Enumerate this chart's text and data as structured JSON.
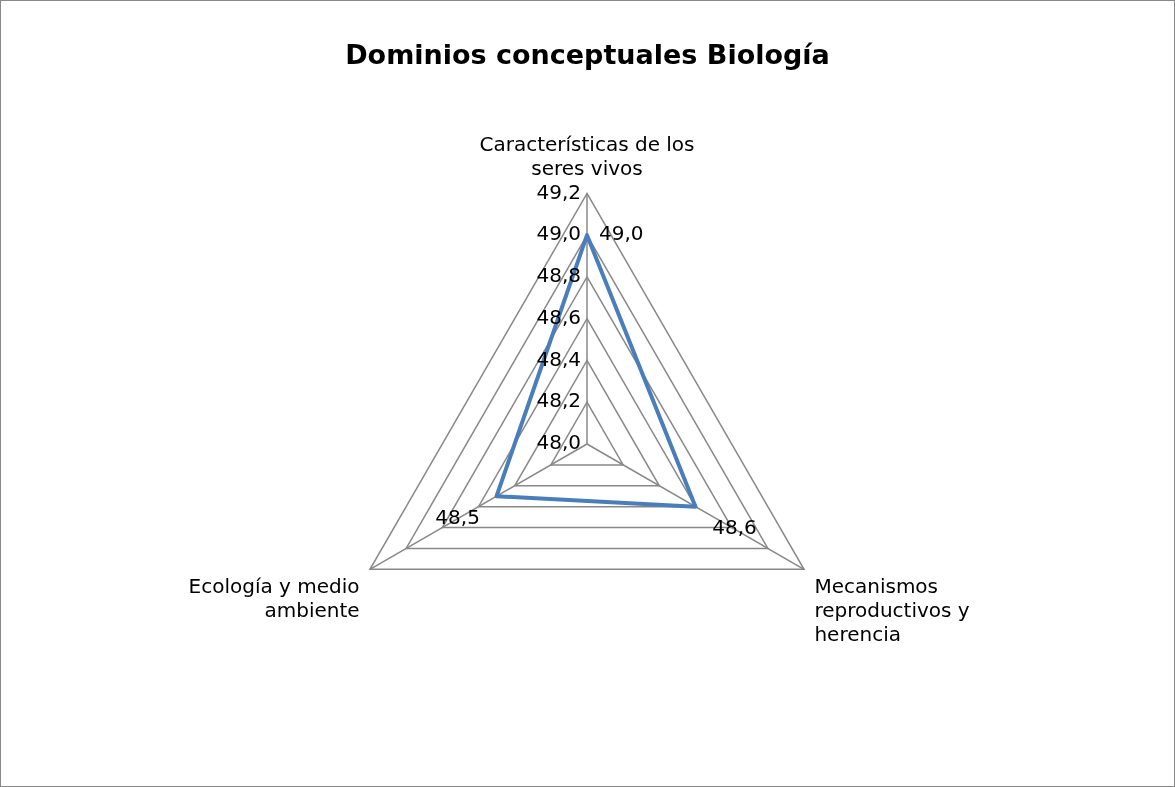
{
  "chart_data": {
    "type": "radar",
    "title": "Dominios conceptuales Biología",
    "categories": [
      "Características de los seres vivos",
      "Mecanismos reproductivos y herencia",
      "Ecología y medio ambiente"
    ],
    "series": [
      {
        "color": "#4a7ebb",
        "values": [
          49.0,
          48.6,
          48.5
        ]
      }
    ],
    "value_labels": [
      "49,0",
      "48,6",
      "48,5"
    ],
    "ylim": [
      48.0,
      49.2
    ],
    "yticks": [
      {
        "value": 48.0,
        "label": "48,0"
      },
      {
        "value": 48.2,
        "label": "48,2"
      },
      {
        "value": 48.4,
        "label": "48,4"
      },
      {
        "value": 48.6,
        "label": "48,6"
      },
      {
        "value": 48.8,
        "label": "48,8"
      },
      {
        "value": 49.0,
        "label": "49,0"
      },
      {
        "value": 49.2,
        "label": "49,2"
      }
    ],
    "grid": true
  }
}
